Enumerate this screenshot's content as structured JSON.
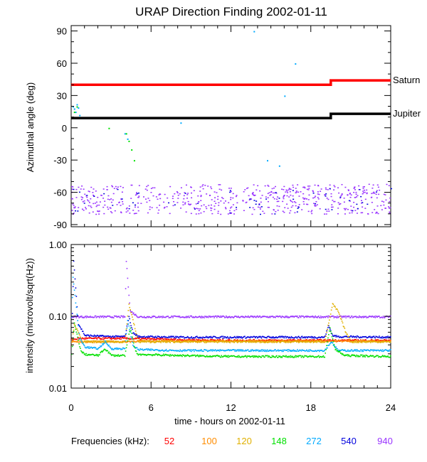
{
  "title": "URAP Direction Finding  2002-01-11",
  "top_panel": {
    "ylabel": "Azimuthal angle (deg)",
    "ylim": [
      -92,
      95
    ],
    "ytick_labels": [
      "90",
      "60",
      "30",
      "0",
      "-30",
      "-60",
      "-90"
    ],
    "yticks": [
      90,
      60,
      30,
      0,
      -30,
      -60,
      -90
    ],
    "planets": [
      {
        "name": "Saturn",
        "color": "#ff0000",
        "segments": [
          {
            "x": [
              0,
              19.5
            ],
            "y": 40
          },
          {
            "x": [
              19.5,
              24
            ],
            "y": 44
          }
        ]
      },
      {
        "name": "Jupiter",
        "color": "#000000",
        "segments": [
          {
            "x": [
              0,
              19.5
            ],
            "y": 9
          },
          {
            "x": [
              19.5,
              24
            ],
            "y": 13
          }
        ]
      }
    ]
  },
  "bottom_panel": {
    "ylabel": "intensity (microvolt/sqrt(Hz))",
    "ylim_log": [
      0.01,
      1.0
    ],
    "ytick_labels": [
      "1.00",
      "0.10",
      "0.01"
    ],
    "yticks": [
      1.0,
      0.1,
      0.01
    ]
  },
  "xaxis": {
    "label": "time - hours on 2002-01-11",
    "xlim": [
      0,
      24
    ],
    "tick_labels": [
      "0",
      "6",
      "12",
      "18",
      "24"
    ],
    "ticks": [
      0,
      6,
      12,
      18,
      24
    ]
  },
  "legend": {
    "label": "Frequencies (kHz):",
    "items": [
      {
        "name": "52",
        "color": "#ff0000"
      },
      {
        "name": "100",
        "color": "#ff8c00"
      },
      {
        "name": "120",
        "color": "#e0b000"
      },
      {
        "name": "148",
        "color": "#00e000"
      },
      {
        "name": "272",
        "color": "#00aaff"
      },
      {
        "name": "540",
        "color": "#0000dd"
      },
      {
        "name": "940",
        "color": "#9933ff"
      }
    ]
  },
  "chart_data": {
    "type": "scatter",
    "title": "URAP Direction Finding  2002-01-11",
    "xlabel": "time - hours on 2002-01-11",
    "panels": [
      {
        "name": "azimuth",
        "ylabel": "Azimuthal angle (deg)",
        "xlim": [
          0,
          24
        ],
        "ylim": [
          -90,
          90
        ],
        "series": [
          {
            "name": "940",
            "color": "#9933ff",
            "x_range": [
              0,
              24
            ],
            "y_mean": -66,
            "y_spread": 14,
            "count": 600
          },
          {
            "name": "540",
            "color": "#0000dd",
            "x_range": [
              0,
              24
            ],
            "y_mean": -68,
            "y_spread": 12,
            "count": 60
          },
          {
            "name": "272",
            "color": "#00aaff",
            "x": [
              0.1,
              0.2,
              0.3,
              0.4,
              0.5,
              0.6,
              4.0,
              4.2,
              8.2,
              13.7,
              14.7,
              16.8,
              16.0,
              15.6
            ],
            "y": [
              20,
              18,
              15,
              22,
              19,
              12,
              -5,
              -10,
              5,
              90,
              -30,
              60,
              30,
              -35
            ]
          },
          {
            "name": "148",
            "color": "#00e000",
            "x": [
              2.8,
              4.1,
              4.3,
              4.5,
              4.7,
              0.2,
              0.4
            ],
            "y": [
              0,
              -5,
              -12,
              -20,
              -30,
              15,
              20
            ]
          },
          {
            "name": "Saturn",
            "color": "#ff0000",
            "x": [
              0,
              19.5,
              19.5,
              24
            ],
            "y": [
              40,
              40,
              44,
              44
            ]
          },
          {
            "name": "Jupiter",
            "color": "#000000",
            "x": [
              0,
              19.5,
              19.5,
              24
            ],
            "y": [
              9,
              9,
              13,
              13
            ]
          }
        ]
      },
      {
        "name": "intensity",
        "ylabel": "intensity (microvolt/sqrt(Hz))",
        "xlim": [
          0,
          24
        ],
        "ylim": [
          0.01,
          1.0
        ],
        "yscale": "log",
        "series": [
          {
            "name": "940",
            "color": "#9933ff",
            "x": [
              0,
              0.3,
              0.5,
              1,
              2,
              3,
              4,
              4.1,
              4.4,
              5,
              8,
              12,
              16,
              19,
              19.5,
              20,
              24
            ],
            "y": [
              0.1,
              0.1,
              0.1,
              0.1,
              0.1,
              0.1,
              0.1,
              0.6,
              0.12,
              0.1,
              0.1,
              0.1,
              0.1,
              0.1,
              0.1,
              0.1,
              0.1
            ]
          },
          {
            "name": "540",
            "color": "#0000dd",
            "x": [
              0,
              0.15,
              0.5,
              1,
              2,
              3,
              4,
              4.3,
              4.6,
              5,
              8,
              12,
              16,
              19,
              19.3,
              19.6,
              20,
              24
            ],
            "y": [
              0.05,
              0.6,
              0.08,
              0.055,
              0.054,
              0.053,
              0.053,
              0.1,
              0.06,
              0.053,
              0.052,
              0.052,
              0.052,
              0.052,
              0.075,
              0.055,
              0.053,
              0.052
            ]
          },
          {
            "name": "52",
            "color": "#ff0000",
            "x": [
              0,
              0.5,
              4,
              8,
              12,
              16,
              20,
              24
            ],
            "y": [
              0.048,
              0.05,
              0.05,
              0.048,
              0.047,
              0.047,
              0.047,
              0.047
            ]
          },
          {
            "name": "100",
            "color": "#ff8c00",
            "x": [
              0,
              4,
              5,
              8,
              12,
              16,
              19,
              24
            ],
            "y": [
              0.045,
              0.045,
              0.046,
              0.046,
              0.046,
              0.046,
              0.046,
              0.046
            ]
          },
          {
            "name": "120",
            "color": "#e0b000",
            "x": [
              0,
              0.2,
              0.8,
              4,
              4.3,
              5,
              12,
              19,
              19.6,
              20,
              20.6,
              21,
              24
            ],
            "y": [
              0.04,
              0.08,
              0.045,
              0.045,
              0.15,
              0.045,
              0.045,
              0.045,
              0.15,
              0.12,
              0.06,
              0.045,
              0.045
            ]
          },
          {
            "name": "272",
            "color": "#00aaff",
            "x": [
              0,
              0.1,
              0.6,
              1,
              2,
              2.5,
              3,
              4,
              4.2,
              4.6,
              5,
              8,
              12,
              16,
              19,
              19.5,
              20,
              24
            ],
            "y": [
              0.1,
              0.35,
              0.05,
              0.038,
              0.036,
              0.045,
              0.036,
              0.036,
              0.09,
              0.04,
              0.035,
              0.034,
              0.034,
              0.034,
              0.034,
              0.045,
              0.034,
              0.034
            ]
          },
          {
            "name": "148",
            "color": "#00e000",
            "x": [
              0,
              0.2,
              0.7,
              1,
              2,
              2.5,
              3,
              4,
              4.4,
              4.8,
              5,
              8,
              12,
              16,
              19,
              19.4,
              19.8,
              20.5,
              24
            ],
            "y": [
              0.03,
              0.08,
              0.033,
              0.03,
              0.029,
              0.036,
              0.029,
              0.029,
              0.07,
              0.033,
              0.03,
              0.029,
              0.028,
              0.028,
              0.028,
              0.07,
              0.035,
              0.029,
              0.028
            ]
          }
        ]
      }
    ]
  }
}
